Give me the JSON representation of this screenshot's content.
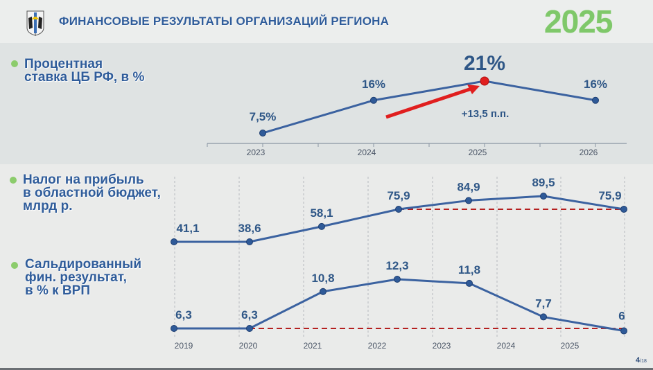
{
  "header": {
    "title": "ФИНАНСОВЫЕ РЕЗУЛЬТАТЫ ОРГАНИЗАЦИЙ РЕГИОНА",
    "year": "2025",
    "emblem_icon": "coat-of-arms-icon"
  },
  "colors": {
    "title": "#2f5c9a",
    "line": "#3b62a0",
    "highlight": "#e01f1f",
    "baseline": "#b52020",
    "bullet": "#8ccc6c",
    "year": "#7fc86a"
  },
  "page": {
    "current": "4",
    "total": "/18"
  },
  "chart_data": [
    {
      "type": "line",
      "title_lines": [
        "Процентная",
        "ставка ЦБ РФ, в %"
      ],
      "categories": [
        "2023",
        "2024",
        "2025",
        "2026"
      ],
      "values": [
        7.5,
        16,
        21,
        16
      ],
      "labels": [
        "7,5%",
        "16%",
        "21%",
        "16%"
      ],
      "highlight_index": 2,
      "annotation": "+13,5 п.п.",
      "ylim": [
        0,
        22
      ]
    },
    {
      "type": "line",
      "title_lines": [
        "Налог на прибыль",
        "в областной бюджет,",
        "млрд р."
      ],
      "values": [
        41.1,
        38.6,
        58.1,
        75.9,
        84.9,
        89.5,
        75.9
      ],
      "labels": [
        "41,1",
        "38,6",
        "58,1",
        "75,9",
        "84,9",
        "89,5",
        "75,9"
      ],
      "baseline_from_index": 3
    },
    {
      "type": "line",
      "title_lines": [
        "Сальдированный",
        "фин. результат,",
        "в % к ВРП"
      ],
      "categories": [
        "2019",
        "2020",
        "2021",
        "2022",
        "2023",
        "2024",
        "2025"
      ],
      "values": [
        6.3,
        6.3,
        10.8,
        12.3,
        11.8,
        7.7,
        6
      ],
      "labels": [
        "6,3",
        "6,3",
        "10,8",
        "12,3",
        "11,8",
        "7,7",
        "6"
      ],
      "baseline_from_index": 1
    }
  ]
}
